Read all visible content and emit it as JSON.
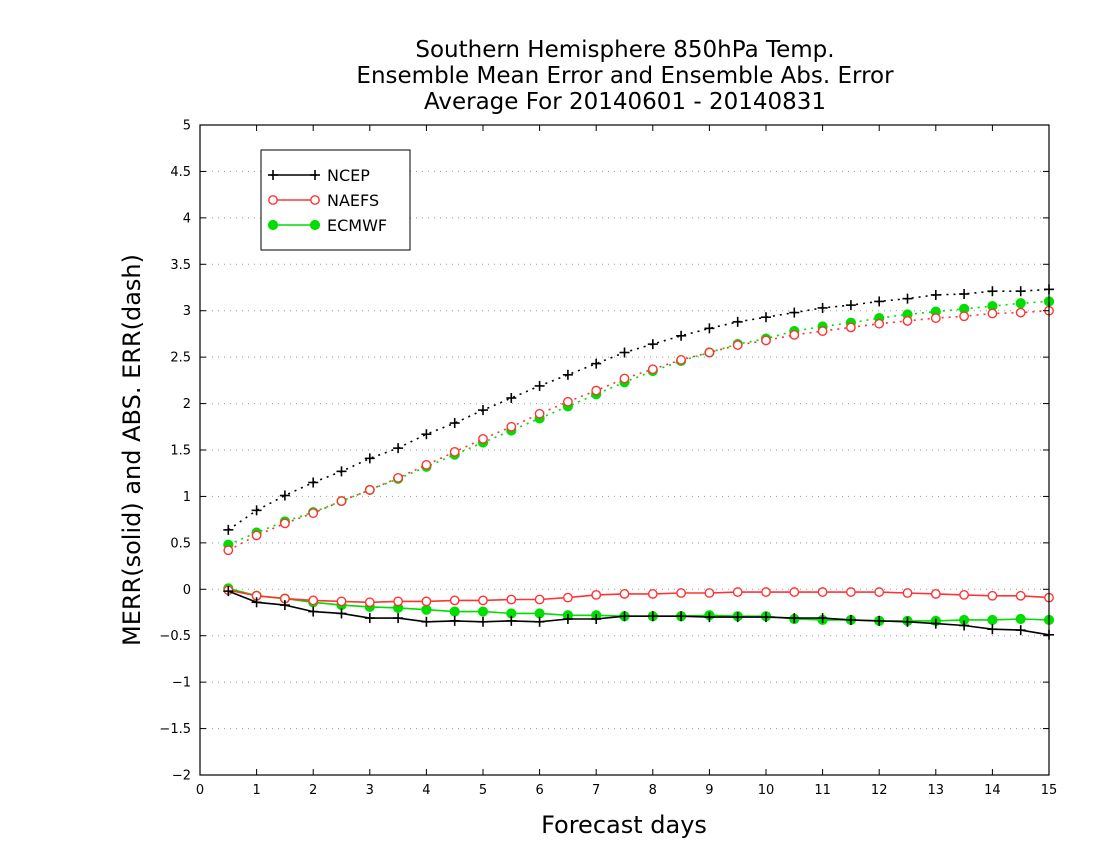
{
  "chart_data": {
    "type": "line",
    "title": [
      "Southern Hemisphere 850hPa Temp.",
      "Ensemble Mean Error and Ensemble Abs. Error",
      "Average For 20140601 - 20140831"
    ],
    "xlabel": "Forecast days",
    "ylabel": "MERR(solid) and ABS. ERR(dash)",
    "xlim": [
      0,
      15
    ],
    "ylim": [
      -2,
      5
    ],
    "x_ticks": [
      0,
      1,
      2,
      3,
      4,
      5,
      6,
      7,
      8,
      9,
      10,
      11,
      12,
      13,
      14,
      15
    ],
    "x_tick_labels": [
      "0",
      "1",
      "2",
      "3",
      "4",
      "5",
      "6",
      "7",
      "8",
      "9",
      "10",
      "11",
      "12",
      "13",
      "14",
      "15"
    ],
    "y_ticks": [
      -2,
      -1.5,
      -1,
      -0.5,
      0,
      0.5,
      1,
      1.5,
      2,
      2.5,
      3,
      3.5,
      4,
      4.5,
      5
    ],
    "y_tick_labels": [
      "−2",
      "−1.5",
      "−1",
      "−0.5",
      "0",
      "0.5",
      "1",
      "1.5",
      "2",
      "2.5",
      "3",
      "3.5",
      "4",
      "4.5",
      "5"
    ],
    "grid": "horizontal-dotted",
    "legend_position": "top-left",
    "x": [
      0.5,
      1,
      1.5,
      2,
      2.5,
      3,
      3.5,
      4,
      4.5,
      5,
      5.5,
      6,
      6.5,
      7,
      7.5,
      8,
      8.5,
      9,
      9.5,
      10,
      10.5,
      11,
      11.5,
      12,
      12.5,
      13,
      13.5,
      14,
      14.5,
      15
    ],
    "series": [
      {
        "name": "NCEP",
        "color": "#000000",
        "marker": "plus",
        "merr": [
          -0.02,
          -0.14,
          -0.17,
          -0.24,
          -0.26,
          -0.31,
          -0.31,
          -0.35,
          -0.34,
          -0.35,
          -0.34,
          -0.35,
          -0.32,
          -0.32,
          -0.29,
          -0.29,
          -0.29,
          -0.3,
          -0.3,
          -0.3,
          -0.31,
          -0.31,
          -0.33,
          -0.34,
          -0.35,
          -0.37,
          -0.39,
          -0.43,
          -0.44,
          -0.49
        ],
        "abs_err": [
          0.64,
          0.85,
          1.01,
          1.15,
          1.27,
          1.41,
          1.52,
          1.67,
          1.79,
          1.93,
          2.06,
          2.19,
          2.31,
          2.43,
          2.55,
          2.64,
          2.73,
          2.81,
          2.88,
          2.93,
          2.98,
          3.03,
          3.06,
          3.1,
          3.13,
          3.17,
          3.18,
          3.21,
          3.21,
          3.23
        ]
      },
      {
        "name": "NAEFS",
        "color": "#ff3333",
        "marker": "open-circle",
        "merr": [
          -0.01,
          -0.07,
          -0.1,
          -0.12,
          -0.13,
          -0.14,
          -0.13,
          -0.13,
          -0.12,
          -0.12,
          -0.11,
          -0.11,
          -0.09,
          -0.06,
          -0.05,
          -0.05,
          -0.04,
          -0.04,
          -0.03,
          -0.03,
          -0.03,
          -0.03,
          -0.03,
          -0.03,
          -0.04,
          -0.05,
          -0.06,
          -0.07,
          -0.07,
          -0.09
        ],
        "abs_err": [
          0.42,
          0.58,
          0.71,
          0.82,
          0.95,
          1.07,
          1.2,
          1.34,
          1.48,
          1.62,
          1.75,
          1.89,
          2.02,
          2.14,
          2.27,
          2.37,
          2.47,
          2.55,
          2.63,
          2.68,
          2.74,
          2.78,
          2.82,
          2.86,
          2.89,
          2.92,
          2.94,
          2.97,
          2.98,
          3.0
        ]
      },
      {
        "name": "ECMWF",
        "color": "#00dd00",
        "marker": "filled-circle",
        "merr": [
          0.01,
          -0.07,
          -0.1,
          -0.14,
          -0.17,
          -0.19,
          -0.2,
          -0.22,
          -0.24,
          -0.24,
          -0.26,
          -0.26,
          -0.28,
          -0.28,
          -0.29,
          -0.29,
          -0.29,
          -0.28,
          -0.29,
          -0.29,
          -0.32,
          -0.33,
          -0.33,
          -0.34,
          -0.34,
          -0.34,
          -0.33,
          -0.33,
          -0.32,
          -0.33
        ],
        "abs_err": [
          0.48,
          0.61,
          0.73,
          0.83,
          0.95,
          1.07,
          1.19,
          1.32,
          1.45,
          1.58,
          1.71,
          1.84,
          1.97,
          2.1,
          2.23,
          2.35,
          2.46,
          2.55,
          2.64,
          2.7,
          2.78,
          2.83,
          2.87,
          2.92,
          2.96,
          2.99,
          3.02,
          3.05,
          3.08,
          3.1
        ]
      }
    ]
  }
}
